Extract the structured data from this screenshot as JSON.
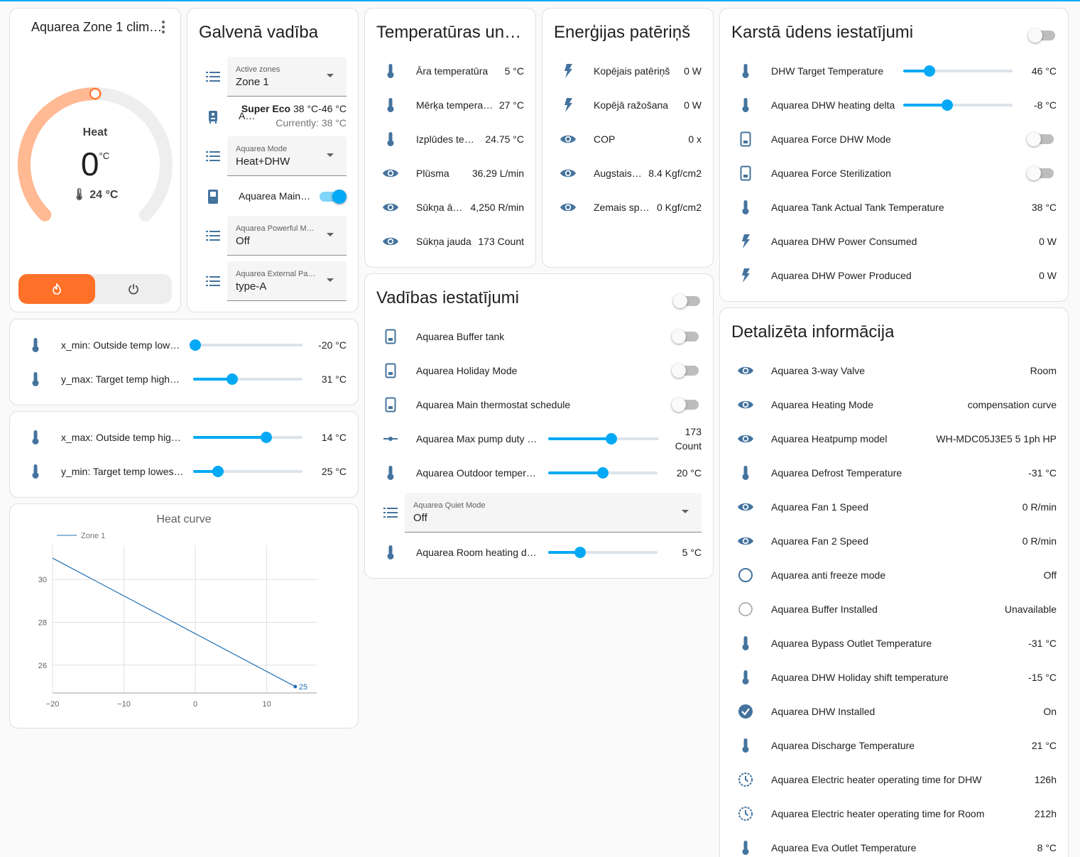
{
  "climate": {
    "title": "Aquarea Zone 1 clim…",
    "mode_label": "Heat",
    "target": "0",
    "unit": "°C",
    "current": "24 °C",
    "setpoint_fraction": 0.5,
    "accent_color": "#ff7029",
    "buttons": [
      {
        "icon": "fire-icon",
        "active": true
      },
      {
        "icon": "power-icon",
        "active": false
      }
    ]
  },
  "main_control": {
    "title": "Galvenā vadība",
    "active_zones": {
      "label": "Active zones",
      "value": "Zone 1"
    },
    "preset": {
      "name": "A…",
      "strong": "Super Eco",
      "range": "38 °C-46 °C",
      "currently": "Currently: 38 °C"
    },
    "mode": {
      "label": "Aquarea Mode",
      "value": "Heat+DHW"
    },
    "main_switch": {
      "label": "Aquarea Main…",
      "on": true
    },
    "powerful": {
      "label": "Aquarea Powerful M…",
      "value": "Off"
    },
    "external": {
      "label": "Aquarea External Pa…",
      "value": "type-A"
    }
  },
  "temps": {
    "title": "Temperatūras un …",
    "rows": [
      {
        "name": "Āra temperatūra",
        "value": "5 °C",
        "icon": "thermometer-icon"
      },
      {
        "name": "Mērķa temperat…",
        "value": "27 °C",
        "icon": "thermometer-icon"
      },
      {
        "name": "Izplūdes tem…",
        "value": "24.75 °C",
        "icon": "thermometer-icon"
      },
      {
        "name": "Plūsma",
        "value": "36.29 L/min",
        "icon": "eye-icon"
      },
      {
        "name": "Sūkņa ātr…",
        "value": "4,250 R/min",
        "icon": "eye-icon"
      },
      {
        "name": "Sūkņa jauda",
        "value": "173 Count",
        "icon": "eye-icon"
      }
    ]
  },
  "energy": {
    "title": "Enerģijas patēriņš",
    "rows": [
      {
        "name": "Kopējais patēriņš",
        "value": "0 W",
        "icon": "flash-icon"
      },
      {
        "name": "Kopējā ražošana",
        "value": "0 W",
        "icon": "flash-icon"
      },
      {
        "name": "COP",
        "value": "0 x",
        "icon": "eye-icon"
      },
      {
        "name": "Augstais…",
        "value": "8.4 Kgf/cm2",
        "icon": "eye-icon"
      },
      {
        "name": "Zemais spi…",
        "value": "0 Kgf/cm2",
        "icon": "eye-icon"
      }
    ]
  },
  "dhw": {
    "title": "Karstā ūdens iestatījumi",
    "header_toggle_on": false,
    "target_temp": {
      "name": "DHW Target Temperature",
      "value": "46 °C",
      "fraction": 0.24
    },
    "heating_delta": {
      "name": "Aquarea DHW heating delta",
      "value": "-8 °C",
      "fraction": 0.4
    },
    "force_dhw": {
      "name": "Aquarea Force DHW Mode",
      "on": false
    },
    "force_ster": {
      "name": "Aquarea Force Sterilization",
      "on": false
    },
    "rows": [
      {
        "name": "Aquarea Tank Actual Tank Temperature",
        "value": "38 °C",
        "icon": "thermometer-icon"
      },
      {
        "name": "Aquarea DHW Power Consumed",
        "value": "0 W",
        "icon": "flash-icon"
      },
      {
        "name": "Aquarea DHW Power Produced",
        "value": "0 W",
        "icon": "flash-icon"
      }
    ]
  },
  "curve_a": [
    {
      "name": "x_min: Outside temp lowe…",
      "value": "-20 °C",
      "fraction": 0.02
    },
    {
      "name": "y_max: Target temp highe…",
      "value": "31 °C",
      "fraction": 0.36
    }
  ],
  "curve_b": [
    {
      "name": "x_max: Outside temp high…",
      "value": "14 °C",
      "fraction": 0.67
    },
    {
      "name": "y_min: Target temp lowest…",
      "value": "25 °C",
      "fraction": 0.23
    }
  ],
  "control": {
    "title": "Vadības iestatījumi",
    "header_toggle_on": false,
    "toggles": [
      {
        "name": "Aquarea Buffer tank",
        "on": false
      },
      {
        "name": "Aquarea Holiday Mode",
        "on": false
      },
      {
        "name": "Aquarea Main thermostat schedule",
        "on": false
      }
    ],
    "max_pump": {
      "name": "Aquarea Max pump duty …",
      "value_num": "173",
      "value_unit": "Count",
      "fraction": 0.57
    },
    "outdoor": {
      "name": "Aquarea Outdoor tempera…",
      "value": "20 °C",
      "fraction": 0.5
    },
    "quiet": {
      "label": "Aquarea Quiet Mode",
      "value": "Off"
    },
    "room_delta": {
      "name": "Aquarea Room heating del…",
      "value": "5 °C",
      "fraction": 0.29
    }
  },
  "details": {
    "title": "Detalizēta informācija",
    "rows": [
      {
        "name": "Aquarea 3-way Valve",
        "value": "Room",
        "icon": "eye-icon"
      },
      {
        "name": "Aquarea Heating Mode",
        "value": "compensation curve",
        "icon": "eye-icon"
      },
      {
        "name": "Aquarea Heatpump model",
        "value": "WH-MDC05J3E5 5 1ph HP",
        "icon": "eye-icon"
      },
      {
        "name": "Aquarea Defrost Temperature",
        "value": "-31 °C",
        "icon": "thermometer-icon"
      },
      {
        "name": "Aquarea Fan 1 Speed",
        "value": "0 R/min",
        "icon": "eye-icon"
      },
      {
        "name": "Aquarea Fan 2 Speed",
        "value": "0 R/min",
        "icon": "eye-icon"
      },
      {
        "name": "Aquarea anti freeze mode",
        "value": "Off",
        "icon": "circle-outline-icon"
      },
      {
        "name": "Aquarea Buffer Installed",
        "value": "Unavailable",
        "icon": "circle-outline-light-icon"
      },
      {
        "name": "Aquarea Bypass Outlet Temperature",
        "value": "-31 °C",
        "icon": "thermometer-icon"
      },
      {
        "name": "Aquarea DHW Holiday shift temperature",
        "value": "-15 °C",
        "icon": "thermometer-icon"
      },
      {
        "name": "Aquarea DHW Installed",
        "value": "On",
        "icon": "check-circle-icon"
      },
      {
        "name": "Aquarea Discharge Temperature",
        "value": "21 °C",
        "icon": "thermometer-icon"
      },
      {
        "name": "Aquarea Electric heater operating time for DHW",
        "value": "126h",
        "icon": "clock-icon"
      },
      {
        "name": "Aquarea Electric heater operating time for Room",
        "value": "212h",
        "icon": "clock-icon"
      },
      {
        "name": "Aquarea Eva Outlet Temperature",
        "value": "8 °C",
        "icon": "thermometer-icon"
      }
    ]
  },
  "chart_data": {
    "type": "line",
    "title": "Heat curve",
    "series": [
      {
        "name": "Zone 1",
        "x": [
          -20,
          14
        ],
        "y": [
          31,
          25
        ]
      }
    ],
    "end_label": "25",
    "xlim": [
      -20,
      17
    ],
    "ylim": [
      24.7,
      31.6
    ],
    "x_ticks": [
      -20,
      -10,
      0,
      10
    ],
    "x_tick_labels": [
      "−20",
      "−10",
      "0",
      "10"
    ],
    "y_ticks": [
      26,
      28,
      30
    ],
    "y_tick_labels": [
      "26",
      "28",
      "30"
    ],
    "grid": true,
    "legend": "top-left",
    "line_color": "#1f6fb4"
  }
}
